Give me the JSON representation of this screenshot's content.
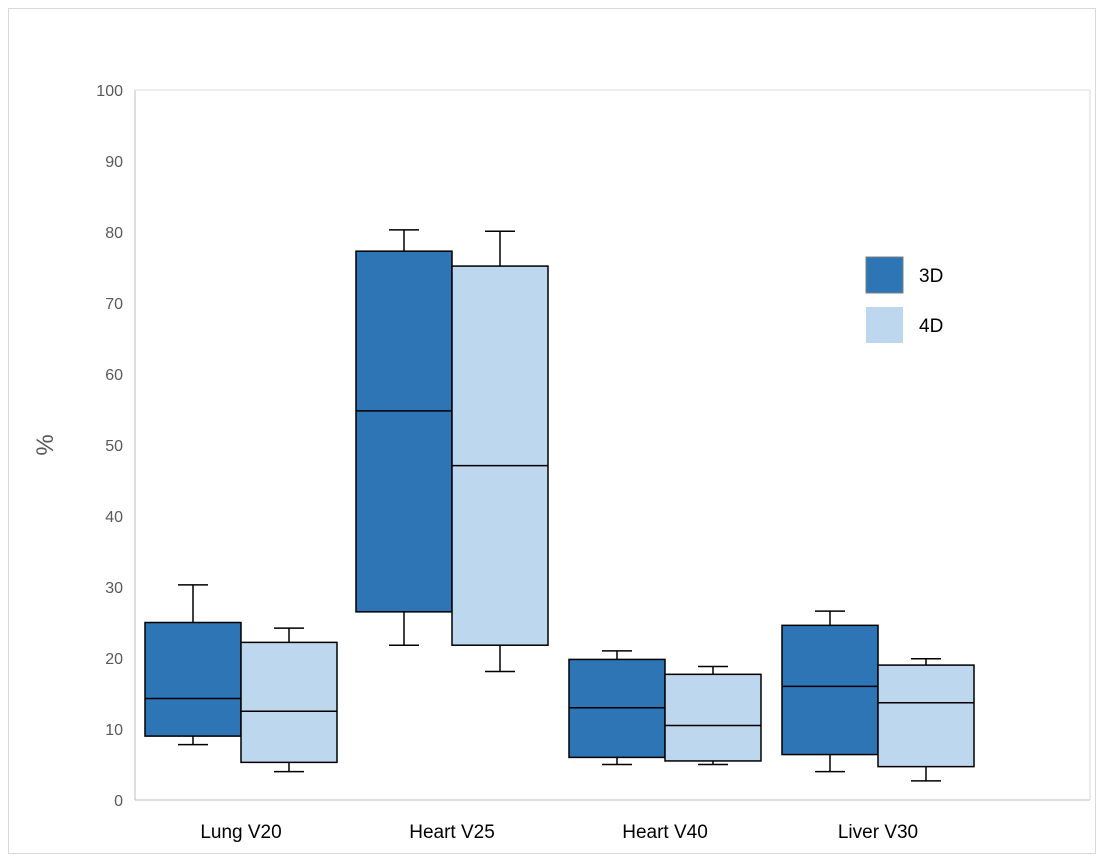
{
  "chart_data": {
    "type": "box",
    "title": "",
    "xlabel": "",
    "ylabel": "%",
    "ylim": [
      0,
      100
    ],
    "yticks": [
      0,
      10,
      20,
      30,
      40,
      50,
      60,
      70,
      80,
      90,
      100
    ],
    "grid": false,
    "legend_position": "top-right",
    "categories": [
      "Lung V20",
      "Heart V25",
      "Heart V40",
      "Liver V30"
    ],
    "series": [
      {
        "name": "3D",
        "color": "#2e75b6",
        "boxes": [
          {
            "min": 7.8,
            "q1": 9.0,
            "median": 14.3,
            "q3": 25.0,
            "max": 30.3
          },
          {
            "min": 21.8,
            "q1": 26.5,
            "median": 54.8,
            "q3": 77.3,
            "max": 80.3
          },
          {
            "min": 5.0,
            "q1": 6.0,
            "median": 13.0,
            "q3": 19.8,
            "max": 21.0
          },
          {
            "min": 4.0,
            "q1": 6.4,
            "median": 16.0,
            "q3": 24.6,
            "max": 26.6
          }
        ]
      },
      {
        "name": "4D",
        "color": "#bdd7ee",
        "boxes": [
          {
            "min": 4.0,
            "q1": 5.3,
            "median": 12.5,
            "q3": 22.2,
            "max": 24.2
          },
          {
            "min": 18.1,
            "q1": 21.8,
            "median": 47.1,
            "q3": 75.2,
            "max": 80.1
          },
          {
            "min": 5.0,
            "q1": 5.5,
            "median": 10.5,
            "q3": 17.7,
            "max": 18.8
          },
          {
            "min": 2.7,
            "q1": 4.7,
            "median": 13.7,
            "q3": 19.0,
            "max": 19.9
          }
        ]
      }
    ]
  }
}
